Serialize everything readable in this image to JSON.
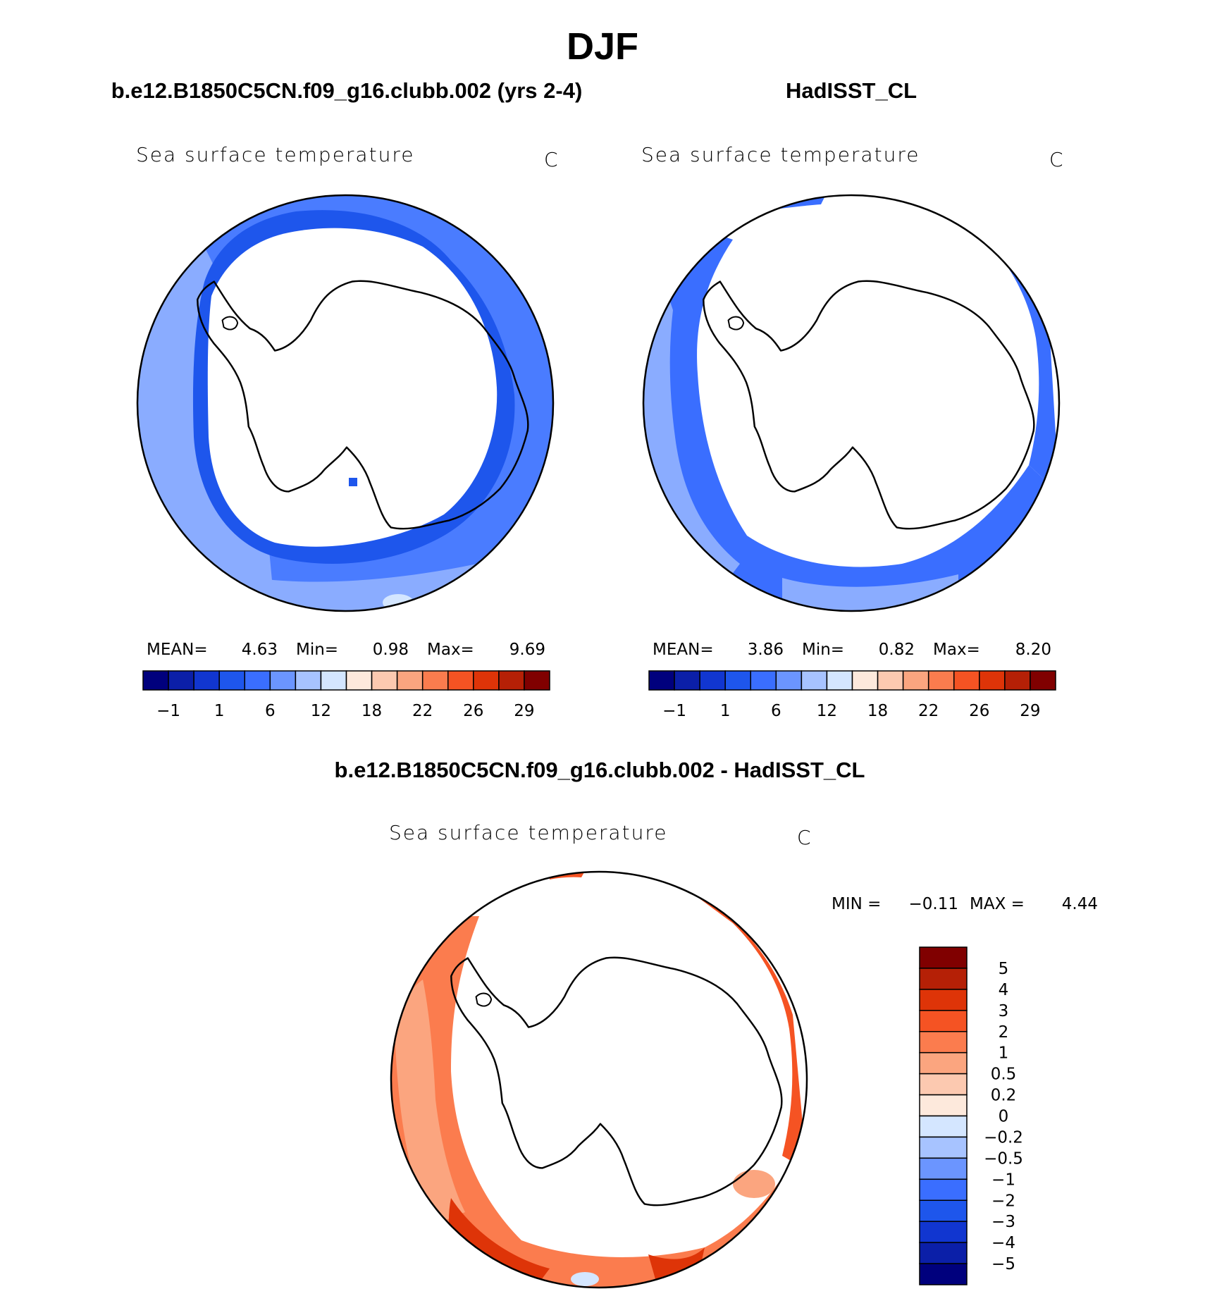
{
  "figure_title": "DJF",
  "chart_data": [
    {
      "type": "heatmap",
      "title": "b.e12.B1850C5CN.f09_g16.clubb.002 (yrs 2-4)",
      "subtitle": "Sea surface temperature",
      "units": "C",
      "projection": "polar stereographic, south pole",
      "stats": {
        "mean_label": "MEAN=",
        "mean": "4.63",
        "min_label": "Min=",
        "min": "0.98",
        "max_label": "Max=",
        "max": "9.69"
      },
      "colorbar": {
        "orientation": "horizontal",
        "tick_labels": [
          "−1",
          "1",
          "6",
          "12",
          "18",
          "22",
          "26",
          "29"
        ],
        "colors": [
          "#00007d",
          "#0b1fa8",
          "#1136d0",
          "#1e56ec",
          "#3a6eff",
          "#6b95ff",
          "#a7c3ff",
          "#d4e6ff",
          "#fde9dc",
          "#fcc9b0",
          "#fba57f",
          "#fb7c4e",
          "#f55323",
          "#de3408",
          "#b52006",
          "#800000"
        ]
      }
    },
    {
      "type": "heatmap",
      "title": "HadISST_CL",
      "subtitle": "Sea surface temperature",
      "units": "C",
      "projection": "polar stereographic, south pole",
      "stats": {
        "mean_label": "MEAN=",
        "mean": "3.86",
        "min_label": "Min=",
        "min": "0.82",
        "max_label": "Max=",
        "max": "8.20"
      },
      "colorbar": {
        "orientation": "horizontal",
        "tick_labels": [
          "−1",
          "1",
          "6",
          "12",
          "18",
          "22",
          "26",
          "29"
        ],
        "colors": [
          "#00007d",
          "#0b1fa8",
          "#1136d0",
          "#1e56ec",
          "#3a6eff",
          "#6b95ff",
          "#a7c3ff",
          "#d4e6ff",
          "#fde9dc",
          "#fcc9b0",
          "#fba57f",
          "#fb7c4e",
          "#f55323",
          "#de3408",
          "#b52006",
          "#800000"
        ]
      }
    },
    {
      "type": "heatmap",
      "title": "b.e12.B1850C5CN.f09_g16.clubb.002 - HadISST_CL",
      "subtitle": "Sea surface temperature",
      "units": "C",
      "projection": "polar stereographic, south pole",
      "stats": {
        "min_label": "MIN =",
        "min": "−0.11",
        "max_label": "MAX =",
        "max": "4.44"
      },
      "colorbar": {
        "orientation": "vertical",
        "tick_labels": [
          "5",
          "4",
          "3",
          "2",
          "1",
          "0.5",
          "0.2",
          "0",
          "−0.2",
          "−0.5",
          "−1",
          "−2",
          "−3",
          "−4",
          "−5"
        ],
        "colors": [
          "#800000",
          "#b52006",
          "#de3408",
          "#f55323",
          "#fb7c4e",
          "#fba57f",
          "#fcc9b0",
          "#fde9dc",
          "#d4e6ff",
          "#a7c3ff",
          "#6b95ff",
          "#3a6eff",
          "#1e56ec",
          "#1136d0",
          "#0b1fa8",
          "#00007d"
        ]
      }
    }
  ]
}
